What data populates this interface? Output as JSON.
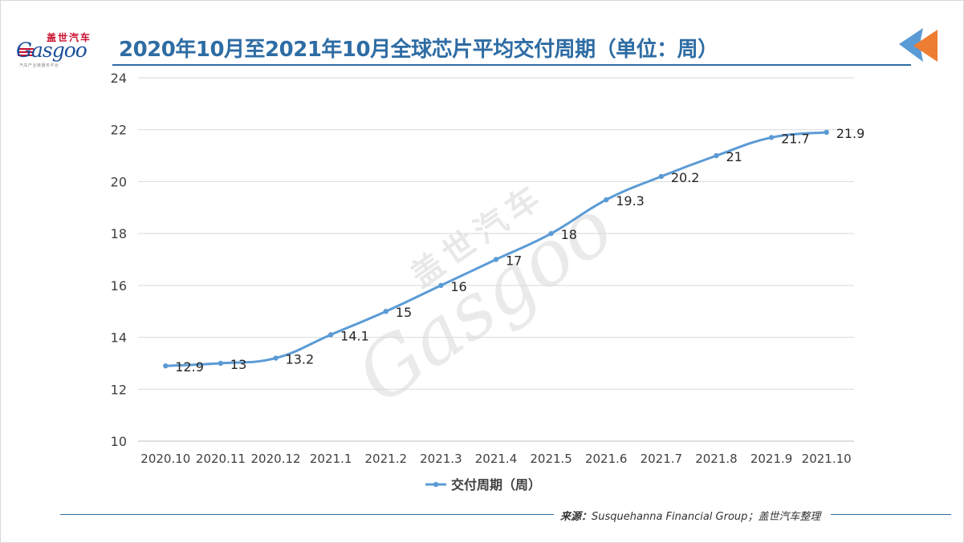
{
  "logo": {
    "text_cn": "盖世汽车",
    "text_en": "Gasgoo",
    "subtitle": "汽车产业链服务平台"
  },
  "title": "2020年10月至2021年10月全球芯片平均交付周期（单位：周）",
  "watermark": {
    "text_cn": "盖世汽车",
    "text_en": "Gasgoo"
  },
  "source": {
    "label": "来源：",
    "text": "Susquehanna Financial Group；盖世汽车整理"
  },
  "colors": {
    "title": "#2e6ca4",
    "series": "#5b9bd5",
    "accent_orange": "#ed7d31",
    "accent_blue": "#5b9bd5"
  },
  "chart_data": {
    "type": "line",
    "title": "2020年10月至2021年10月全球芯片平均交付周期（单位：周）",
    "categories": [
      "2020.10",
      "2020.11",
      "2020.12",
      "2021.1",
      "2021.2",
      "2021.3",
      "2021.4",
      "2021.5",
      "2021.6",
      "2021.7",
      "2021.8",
      "2021.9",
      "2021.10"
    ],
    "series": [
      {
        "name": "交付周期（周）",
        "values": [
          12.9,
          13,
          13.2,
          14.1,
          15,
          16,
          17,
          18,
          19.3,
          20.2,
          21,
          21.7,
          21.9
        ],
        "labels": [
          "12.9",
          "13",
          "13.2",
          "14.1",
          "15",
          "16",
          "17",
          "18",
          "19.3",
          "20.2",
          "21",
          "21.7",
          "21.9"
        ]
      }
    ],
    "ylim": [
      10,
      24
    ],
    "yticks": [
      "10",
      "12",
      "14",
      "16",
      "18",
      "20",
      "22",
      "24"
    ],
    "grid": true,
    "legend": "bottom",
    "smooth": true
  }
}
